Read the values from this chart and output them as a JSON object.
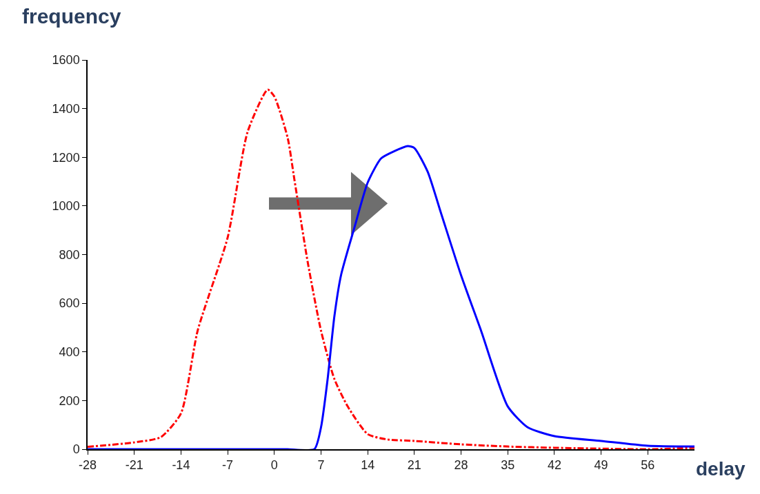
{
  "chart_data": {
    "type": "line",
    "xlabel": "delay",
    "ylabel": "frequency",
    "xlim": [
      -28,
      63
    ],
    "xticks": [
      -28,
      -21,
      -14,
      -7,
      0,
      7,
      14,
      21,
      28,
      35,
      42,
      49,
      56
    ],
    "ylim": [
      0,
      1600
    ],
    "yticks": [
      0,
      200,
      400,
      600,
      800,
      1000,
      1200,
      1400,
      1600
    ],
    "grid": false,
    "legend": false,
    "marker": "none",
    "series": [
      {
        "color": "#ff0000",
        "line_style": "dashdot",
        "x": [
          -28,
          -21,
          -17,
          -14,
          -11.5,
          -7,
          -4,
          -1,
          0,
          2,
          3,
          5,
          7,
          9,
          11,
          14,
          17,
          21,
          28,
          35,
          42,
          56,
          63
        ],
        "values": [
          10,
          28,
          50,
          147,
          487,
          870,
          1305,
          1478,
          1450,
          1280,
          1110,
          770,
          487,
          289,
          176,
          62,
          40,
          34,
          20,
          11,
          6,
          0,
          6
        ]
      },
      {
        "color": "#0000ff",
        "line_style": "solid",
        "x": [
          -28,
          -14,
          0,
          2,
          6,
          7,
          8,
          9,
          10,
          12,
          14,
          16,
          18,
          20,
          21,
          23,
          25,
          28,
          31,
          35,
          38,
          42,
          49,
          56,
          63
        ],
        "values": [
          0,
          0,
          0,
          0,
          0,
          90,
          290,
          545,
          715,
          910,
          1096,
          1195,
          1225,
          1246,
          1238,
          1140,
          970,
          715,
          487,
          176,
          90,
          54,
          34,
          14,
          11
        ]
      }
    ]
  }
}
